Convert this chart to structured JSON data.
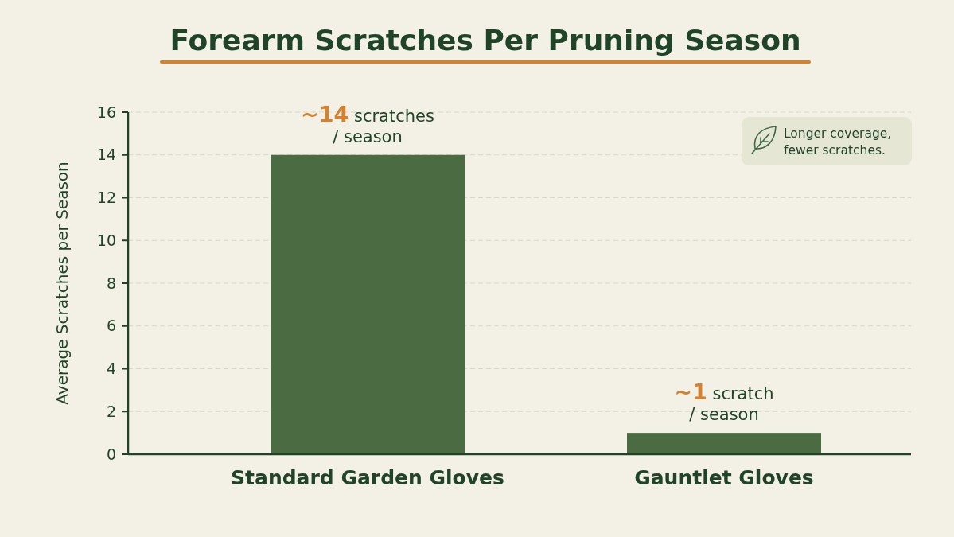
{
  "chart_data": {
    "type": "bar",
    "title": "Forearm Scratches Per Pruning Season",
    "ylabel": "Average Scratches per Season",
    "categories": [
      "Standard Garden Gloves",
      "Gauntlet Gloves"
    ],
    "values": [
      14,
      1
    ],
    "color": "#4b6b42",
    "value_labels": [
      "~14 scratches\n/ season",
      "~1 scratch\n/ season"
    ],
    "ylim": [
      0,
      16
    ],
    "yticks": [
      0,
      2,
      4,
      6,
      8,
      10,
      12,
      14,
      16
    ],
    "grid": "y",
    "annotations": [
      "Longer coverage,\nfewer scratches."
    ]
  }
}
